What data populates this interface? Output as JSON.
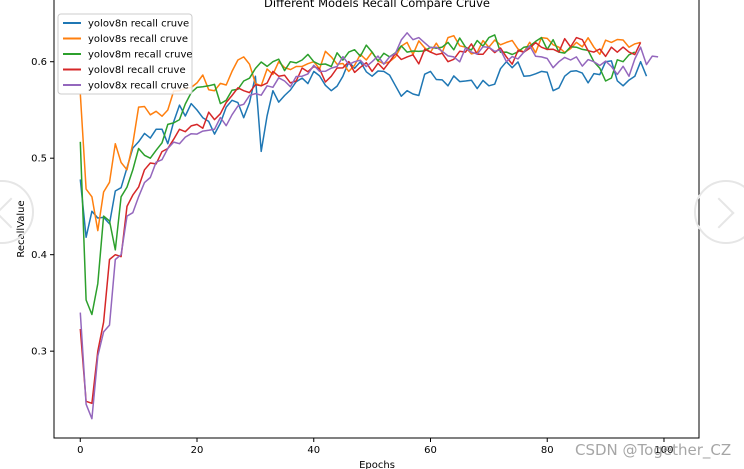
{
  "chart_data": {
    "type": "line",
    "title": "Different Models Recall Compare Cruve",
    "xlabel": "Epochs",
    "ylabel": "RecallValue",
    "xlim": [
      -4.5,
      106
    ],
    "ylim": [
      0.21,
      0.665
    ],
    "xticks": [
      0,
      20,
      40,
      60,
      80,
      100
    ],
    "xtick_labels": [
      "0",
      "20",
      "40",
      "60",
      "80",
      "100"
    ],
    "yticks": [
      0.3,
      0.4,
      0.5,
      0.6
    ],
    "ytick_labels": [
      "0.3",
      "0.4",
      "0.5",
      "0.6"
    ],
    "legend_position": "top-left",
    "series": [
      {
        "name": "yolov8n recall cruve",
        "color": "#1f77b4",
        "anchors": [
          [
            0,
            0.478
          ],
          [
            1,
            0.418
          ],
          [
            2,
            0.445
          ],
          [
            3,
            0.438
          ],
          [
            5,
            0.432
          ],
          [
            6,
            0.466
          ],
          [
            8,
            0.49
          ],
          [
            10,
            0.517
          ],
          [
            13,
            0.53
          ],
          [
            15,
            0.515
          ],
          [
            17,
            0.555
          ],
          [
            20,
            0.55
          ],
          [
            23,
            0.525
          ],
          [
            26,
            0.56
          ],
          [
            28,
            0.542
          ],
          [
            30,
            0.585
          ],
          [
            31,
            0.507
          ],
          [
            33,
            0.57
          ],
          [
            35,
            0.565
          ],
          [
            38,
            0.583
          ],
          [
            40,
            0.59
          ],
          [
            43,
            0.57
          ],
          [
            46,
            0.6
          ],
          [
            50,
            0.585
          ],
          [
            52,
            0.59
          ],
          [
            54,
            0.575
          ],
          [
            56,
            0.57
          ],
          [
            58,
            0.565
          ],
          [
            60,
            0.59
          ],
          [
            63,
            0.575
          ],
          [
            66,
            0.58
          ],
          [
            70,
            0.575
          ],
          [
            73,
            0.6
          ],
          [
            76,
            0.585
          ],
          [
            79,
            0.59
          ],
          [
            81,
            0.57
          ],
          [
            84,
            0.59
          ],
          [
            87,
            0.578
          ],
          [
            90,
            0.6
          ],
          [
            93,
            0.575
          ],
          [
            96,
            0.6
          ],
          [
            97,
            0.585
          ]
        ],
        "noise": 0.02,
        "start": 0,
        "end": 97
      },
      {
        "name": "yolov8s recall cruve",
        "color": "#ff7f0e",
        "anchors": [
          [
            0,
            0.567
          ],
          [
            1,
            0.468
          ],
          [
            2,
            0.46
          ],
          [
            3,
            0.425
          ],
          [
            4,
            0.465
          ],
          [
            5,
            0.475
          ],
          [
            6,
            0.515
          ],
          [
            8,
            0.488
          ],
          [
            10,
            0.553
          ],
          [
            12,
            0.545
          ],
          [
            15,
            0.55
          ],
          [
            17,
            0.57
          ],
          [
            20,
            0.578
          ],
          [
            23,
            0.57
          ],
          [
            26,
            0.59
          ],
          [
            28,
            0.605
          ],
          [
            31,
            0.575
          ],
          [
            34,
            0.6
          ],
          [
            37,
            0.595
          ],
          [
            40,
            0.6
          ],
          [
            43,
            0.605
          ],
          [
            46,
            0.59
          ],
          [
            50,
            0.61
          ],
          [
            53,
            0.6
          ],
          [
            56,
            0.62
          ],
          [
            60,
            0.61
          ],
          [
            63,
            0.625
          ],
          [
            66,
            0.615
          ],
          [
            70,
            0.615
          ],
          [
            73,
            0.62
          ],
          [
            76,
            0.61
          ],
          [
            79,
            0.625
          ],
          [
            82,
            0.615
          ],
          [
            85,
            0.62
          ],
          [
            88,
            0.615
          ],
          [
            91,
            0.62
          ],
          [
            94,
            0.615
          ],
          [
            96,
            0.62
          ]
        ],
        "noise": 0.022,
        "start": 0,
        "end": 96
      },
      {
        "name": "yolov8m recall cruve",
        "color": "#2ca02c",
        "anchors": [
          [
            0,
            0.517
          ],
          [
            1,
            0.353
          ],
          [
            2,
            0.338
          ],
          [
            3,
            0.37
          ],
          [
            4,
            0.44
          ],
          [
            5,
            0.435
          ],
          [
            6,
            0.405
          ],
          [
            7,
            0.46
          ],
          [
            8,
            0.47
          ],
          [
            10,
            0.51
          ],
          [
            12,
            0.5
          ],
          [
            15,
            0.535
          ],
          [
            17,
            0.54
          ],
          [
            19,
            0.568
          ],
          [
            22,
            0.575
          ],
          [
            25,
            0.56
          ],
          [
            28,
            0.58
          ],
          [
            30,
            0.593
          ],
          [
            33,
            0.6
          ],
          [
            36,
            0.6
          ],
          [
            40,
            0.6
          ],
          [
            43,
            0.595
          ],
          [
            46,
            0.61
          ],
          [
            50,
            0.61
          ],
          [
            53,
            0.605
          ],
          [
            56,
            0.61
          ],
          [
            60,
            0.615
          ],
          [
            63,
            0.62
          ],
          [
            66,
            0.615
          ],
          [
            70,
            0.625
          ],
          [
            73,
            0.61
          ],
          [
            76,
            0.615
          ],
          [
            79,
            0.625
          ],
          [
            82,
            0.61
          ],
          [
            85,
            0.615
          ],
          [
            88,
            0.6
          ],
          [
            90,
            0.58
          ],
          [
            93,
            0.6
          ],
          [
            95,
            0.61
          ]
        ],
        "noise": 0.02,
        "start": 0,
        "end": 95
      },
      {
        "name": "yolov8l recall cruve",
        "color": "#d62728",
        "anchors": [
          [
            0,
            0.323
          ],
          [
            1,
            0.248
          ],
          [
            2,
            0.246
          ],
          [
            3,
            0.3
          ],
          [
            4,
            0.33
          ],
          [
            5,
            0.395
          ],
          [
            6,
            0.4
          ],
          [
            7,
            0.398
          ],
          [
            8,
            0.45
          ],
          [
            10,
            0.47
          ],
          [
            12,
            0.495
          ],
          [
            15,
            0.51
          ],
          [
            17,
            0.53
          ],
          [
            20,
            0.535
          ],
          [
            23,
            0.54
          ],
          [
            26,
            0.565
          ],
          [
            28,
            0.57
          ],
          [
            31,
            0.575
          ],
          [
            34,
            0.585
          ],
          [
            37,
            0.58
          ],
          [
            40,
            0.595
          ],
          [
            43,
            0.585
          ],
          [
            46,
            0.6
          ],
          [
            50,
            0.59
          ],
          [
            53,
            0.6
          ],
          [
            56,
            0.605
          ],
          [
            60,
            0.61
          ],
          [
            63,
            0.6
          ],
          [
            66,
            0.61
          ],
          [
            70,
            0.615
          ],
          [
            73,
            0.605
          ],
          [
            76,
            0.61
          ],
          [
            79,
            0.615
          ],
          [
            82,
            0.61
          ],
          [
            85,
            0.625
          ],
          [
            88,
            0.61
          ],
          [
            91,
            0.615
          ],
          [
            94,
            0.61
          ],
          [
            96,
            0.62
          ]
        ],
        "noise": 0.02,
        "start": 0,
        "end": 96
      },
      {
        "name": "yolov8x recall cruve",
        "color": "#9467bd",
        "anchors": [
          [
            0,
            0.34
          ],
          [
            1,
            0.245
          ],
          [
            2,
            0.23
          ],
          [
            3,
            0.295
          ],
          [
            4,
            0.32
          ],
          [
            5,
            0.327
          ],
          [
            6,
            0.395
          ],
          [
            7,
            0.4
          ],
          [
            8,
            0.44
          ],
          [
            10,
            0.46
          ],
          [
            12,
            0.48
          ],
          [
            15,
            0.51
          ],
          [
            17,
            0.515
          ],
          [
            20,
            0.525
          ],
          [
            23,
            0.53
          ],
          [
            26,
            0.545
          ],
          [
            29,
            0.565
          ],
          [
            32,
            0.575
          ],
          [
            35,
            0.58
          ],
          [
            38,
            0.585
          ],
          [
            41,
            0.59
          ],
          [
            44,
            0.595
          ],
          [
            47,
            0.6
          ],
          [
            50,
            0.6
          ],
          [
            53,
            0.605
          ],
          [
            56,
            0.63
          ],
          [
            58,
            0.625
          ],
          [
            61,
            0.615
          ],
          [
            64,
            0.605
          ],
          [
            67,
            0.61
          ],
          [
            70,
            0.615
          ],
          [
            73,
            0.6
          ],
          [
            76,
            0.61
          ],
          [
            79,
            0.605
          ],
          [
            82,
            0.6
          ],
          [
            85,
            0.605
          ],
          [
            88,
            0.6
          ],
          [
            91,
            0.595
          ],
          [
            94,
            0.585
          ],
          [
            96,
            0.615
          ],
          [
            97,
            0.597
          ],
          [
            99,
            0.605
          ]
        ],
        "noise": 0.018,
        "start": 0,
        "end": 99
      }
    ]
  },
  "watermark": "CSDN @Together_CZ",
  "nav": {
    "left_icon": "chevron-left-icon",
    "right_icon": "chevron-right-icon"
  }
}
